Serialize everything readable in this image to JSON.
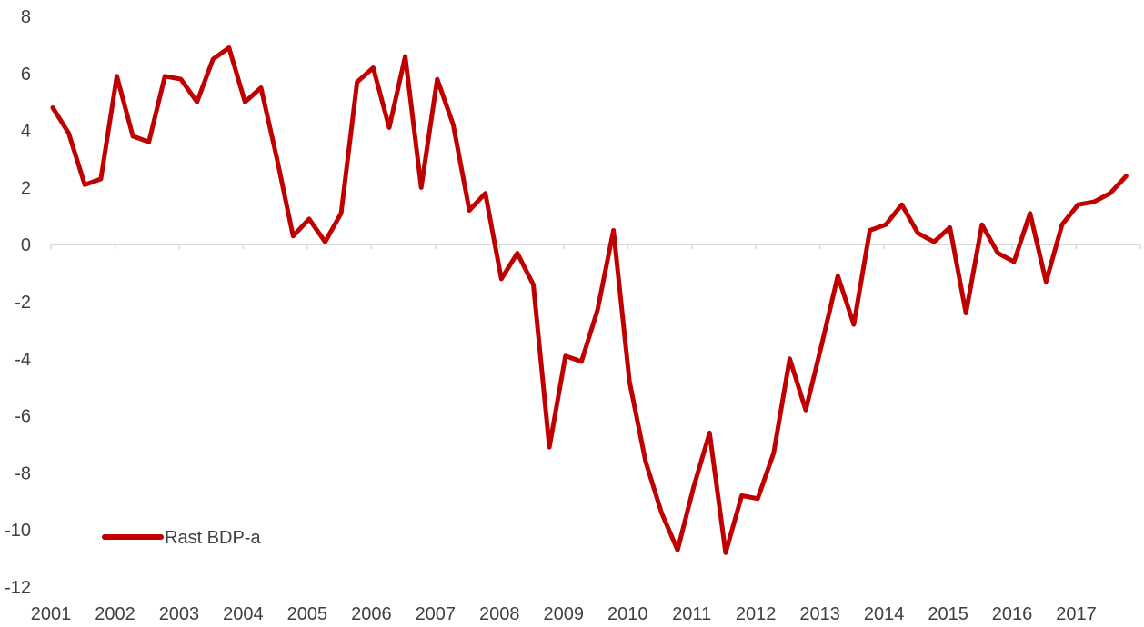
{
  "chart_data": {
    "type": "line",
    "title": "",
    "xlabel": "",
    "ylabel": "",
    "ylim": [
      -12,
      8
    ],
    "yticks": [
      8,
      6,
      4,
      2,
      0,
      -2,
      -4,
      -6,
      -8,
      -10,
      -12
    ],
    "xticks": [
      "2001",
      "2002",
      "2003",
      "2004",
      "2005",
      "2006",
      "2007",
      "2008",
      "2009",
      "2010",
      "2011",
      "2012",
      "2013",
      "2014",
      "2015",
      "2016",
      "2017"
    ],
    "grid": false,
    "legend_position": "bottom-left",
    "series": [
      {
        "name": "Rast BDP-a",
        "color": "#C00000",
        "values": [
          4.8,
          3.9,
          2.1,
          2.3,
          5.9,
          3.8,
          3.6,
          5.9,
          5.8,
          5.0,
          6.5,
          6.9,
          5.0,
          5.5,
          3.0,
          0.3,
          0.9,
          0.1,
          1.1,
          5.7,
          6.2,
          4.1,
          6.6,
          2.0,
          5.8,
          4.2,
          1.2,
          1.8,
          -1.2,
          -0.3,
          -1.4,
          -7.1,
          -3.9,
          -4.1,
          -2.3,
          0.5,
          -4.8,
          -7.6,
          -9.4,
          -10.7,
          -8.5,
          -6.6,
          -10.8,
          -8.8,
          -8.9,
          -7.3,
          -4.0,
          -5.8,
          -3.5,
          -1.1,
          -2.8,
          0.5,
          0.7,
          1.4,
          0.4,
          0.1,
          0.6,
          -2.4,
          0.7,
          -0.3,
          -0.6,
          1.1,
          -1.3,
          0.7,
          1.4,
          1.5,
          1.8,
          2.4
        ]
      }
    ]
  }
}
